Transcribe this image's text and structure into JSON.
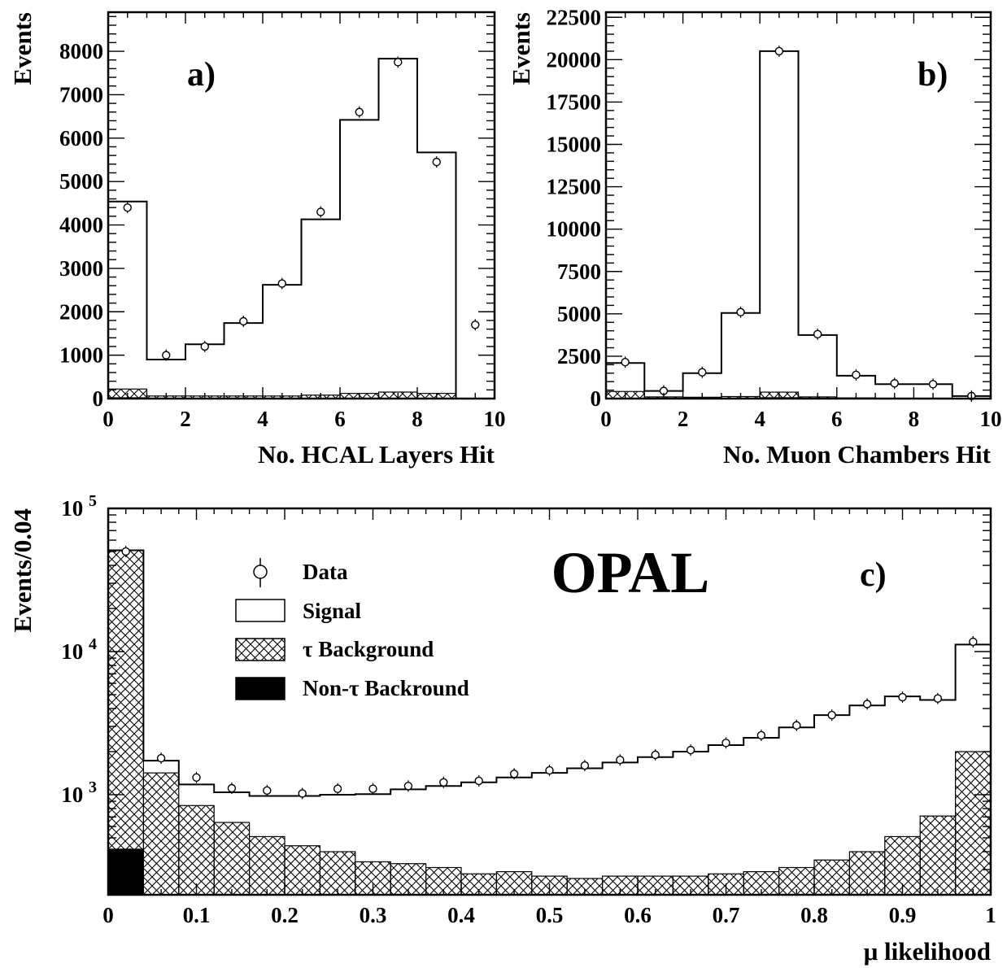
{
  "chart_data": [
    {
      "panel": "a)",
      "type": "histogram",
      "xlabel": "No. HCAL Layers Hit",
      "ylabel": "Events",
      "xlim": [
        0,
        10
      ],
      "ylim": [
        0,
        8900
      ],
      "xticks": [
        0,
        2,
        4,
        6,
        8,
        10
      ],
      "yticks": [
        0,
        1000,
        2000,
        3000,
        4000,
        5000,
        6000,
        7000,
        8000
      ],
      "bin_edges": [
        0,
        1,
        2,
        3,
        4,
        5,
        6,
        7,
        8,
        9,
        10
      ],
      "series": [
        {
          "name": "Data",
          "values": [
            4400,
            1000,
            1200,
            1780,
            2650,
            4300,
            6600,
            7750,
            5450,
            1700
          ]
        },
        {
          "name": "Signal",
          "values": [
            4540,
            900,
            1250,
            1740,
            2620,
            4130,
            6420,
            7830,
            5670,
            0
          ]
        },
        {
          "name": "τ Background",
          "values": [
            220,
            60,
            60,
            60,
            60,
            80,
            120,
            150,
            120,
            0
          ]
        },
        {
          "name": "Non-τ Backround",
          "values": [
            30,
            10,
            10,
            10,
            10,
            10,
            10,
            10,
            10,
            0
          ]
        }
      ]
    },
    {
      "panel": "b)",
      "type": "histogram",
      "xlabel": "No. Muon Chambers Hit",
      "ylabel": "Events",
      "xlim": [
        0,
        10
      ],
      "ylim": [
        0,
        22800
      ],
      "xticks": [
        0,
        2,
        4,
        6,
        8,
        10
      ],
      "yticks": [
        0,
        2500,
        5000,
        7500,
        10000,
        12500,
        15000,
        17500,
        20000,
        22500
      ],
      "bin_edges": [
        0,
        1,
        2,
        3,
        4,
        5,
        6,
        7,
        8,
        9,
        10
      ],
      "series": [
        {
          "name": "Data",
          "values": [
            2150,
            450,
            1550,
            5100,
            20500,
            3800,
            1400,
            900,
            850,
            150
          ]
        },
        {
          "name": "Signal",
          "values": [
            2100,
            450,
            1500,
            5050,
            20500,
            3750,
            1350,
            850,
            850,
            150
          ]
        },
        {
          "name": "τ Background",
          "values": [
            420,
            100,
            80,
            120,
            380,
            100,
            40,
            20,
            20,
            10
          ]
        },
        {
          "name": "Non-τ Backround",
          "values": [
            30,
            10,
            10,
            20,
            80,
            10,
            10,
            5,
            5,
            0
          ]
        }
      ]
    },
    {
      "panel": "c)",
      "type": "histogram",
      "xlabel": "μ likelihood",
      "ylabel": "Events/0.04",
      "xlim": [
        0,
        1
      ],
      "ylim": [
        200,
        100000
      ],
      "yscale": "log",
      "xticks": [
        0,
        0.1,
        0.2,
        0.3,
        0.4,
        0.5,
        0.6,
        0.7,
        0.8,
        0.9,
        1
      ],
      "yticks": [
        1000,
        10000,
        100000
      ],
      "ytick_labels": [
        {
          "base": "10",
          "exp": "3"
        },
        {
          "base": "10",
          "exp": "4"
        },
        {
          "base": "10",
          "exp": "5"
        }
      ],
      "bin_edges": [
        0,
        0.04,
        0.08,
        0.12,
        0.16,
        0.2,
        0.24,
        0.28,
        0.32,
        0.36,
        0.4,
        0.44,
        0.48,
        0.52,
        0.56,
        0.6,
        0.64,
        0.68,
        0.72,
        0.76,
        0.8,
        0.84,
        0.88,
        0.92,
        0.96,
        1.0
      ],
      "series": [
        {
          "name": "Data",
          "x": [
            0.02,
            0.06,
            0.1,
            0.14,
            0.18,
            0.22,
            0.26,
            0.3,
            0.34,
            0.38,
            0.42,
            0.46,
            0.5,
            0.54,
            0.58,
            0.62,
            0.66,
            0.7,
            0.74,
            0.78,
            0.82,
            0.86,
            0.9,
            0.94,
            0.98
          ],
          "values": [
            50000,
            1800,
            1320,
            1110,
            1070,
            1020,
            1100,
            1100,
            1150,
            1220,
            1250,
            1400,
            1480,
            1600,
            1750,
            1900,
            2050,
            2300,
            2600,
            3050,
            3600,
            4300,
            4800,
            4700,
            11700
          ]
        },
        {
          "name": "Signal",
          "values": [
            51000,
            1730,
            1180,
            1040,
            980,
            980,
            1000,
            1010,
            1090,
            1150,
            1220,
            1320,
            1420,
            1530,
            1680,
            1830,
            2000,
            2220,
            2500,
            2950,
            3600,
            4200,
            4860,
            4590,
            11200
          ]
        },
        {
          "name": "τ Background",
          "values": [
            51000,
            1420,
            840,
            640,
            510,
            440,
            400,
            340,
            330,
            310,
            280,
            290,
            270,
            260,
            270,
            270,
            270,
            280,
            290,
            310,
            350,
            400,
            510,
            710,
            2000
          ]
        },
        {
          "name": "Non-τ Backround",
          "values": [
            420,
            0,
            0,
            0,
            0,
            0,
            0,
            0,
            0,
            0,
            0,
            0,
            0,
            0,
            0,
            0,
            0,
            0,
            0,
            0,
            0,
            0,
            0,
            0,
            0
          ]
        }
      ],
      "legend": [
        "Data",
        "Signal",
        "τ Background",
        "Non-τ Backround"
      ],
      "legend_position": "top-left",
      "annotation": "OPAL"
    }
  ]
}
